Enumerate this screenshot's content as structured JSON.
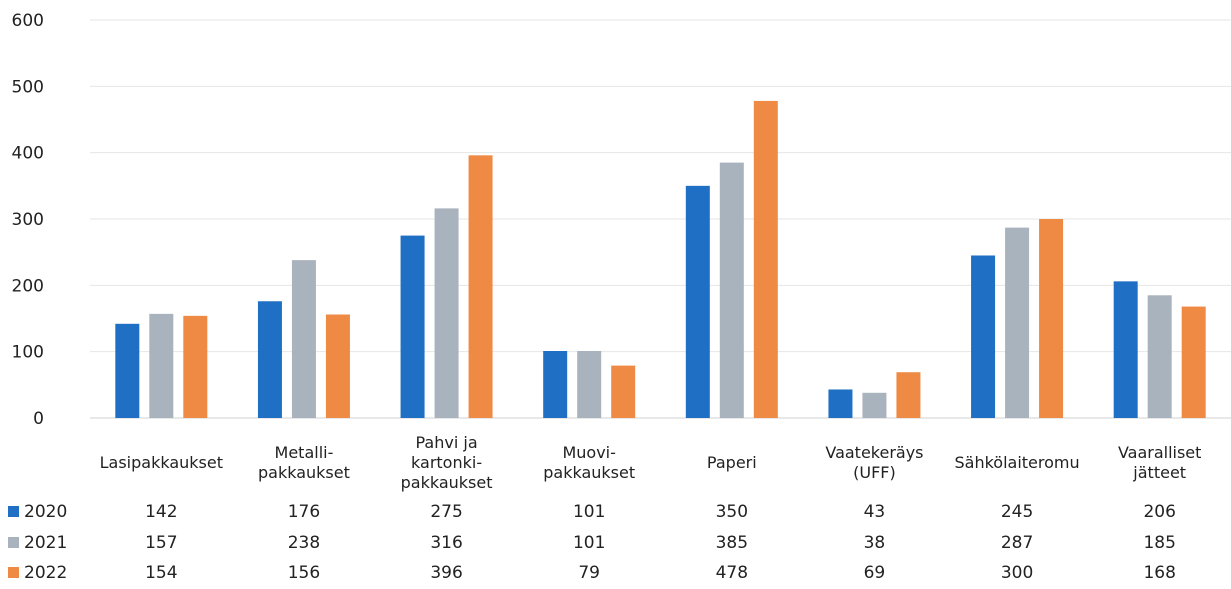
{
  "chart_data": {
    "type": "bar",
    "ylim": [
      0,
      600
    ],
    "yticks": [
      "0",
      "100",
      "200",
      "300",
      "400",
      "500",
      "600"
    ],
    "grid": true,
    "legend_placement": "data-table-left",
    "categories": [
      [
        "Lasipakkaukset"
      ],
      [
        "Metalli-",
        "pakkaukset"
      ],
      [
        "Pahvi ja",
        "kartonki-",
        "pakkaukset"
      ],
      [
        "Muovi-",
        "pakkaukset"
      ],
      [
        "Paperi"
      ],
      [
        "Vaatekeräys",
        "(UFF)"
      ],
      [
        "Sähkölaiteromu"
      ],
      [
        "Vaaralliset",
        "jätteet"
      ]
    ],
    "series": [
      {
        "name": "2020",
        "color": "#1f6fc4",
        "values": [
          142,
          176,
          275,
          101,
          350,
          43,
          245,
          206
        ]
      },
      {
        "name": "2021",
        "color": "#a9b3bd",
        "values": [
          157,
          238,
          316,
          101,
          385,
          38,
          287,
          185
        ]
      },
      {
        "name": "2022",
        "color": "#ee8a44",
        "values": [
          154,
          156,
          396,
          79,
          478,
          69,
          300,
          168
        ]
      }
    ]
  }
}
